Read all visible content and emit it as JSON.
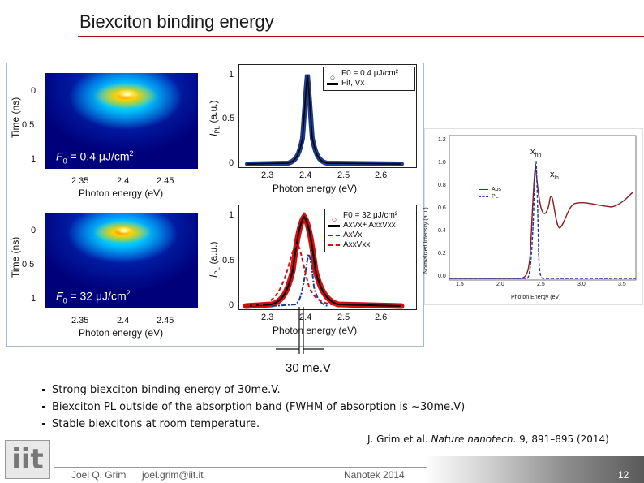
{
  "slide": {
    "title": "Biexciton binding energy"
  },
  "figure_left": {
    "top_heatmap": {
      "label_prefix": "F",
      "label_sub": "0",
      "label_text": " = 0.4 μJ/cm",
      "label_sup": "2"
    },
    "bottom_heatmap": {
      "label_prefix": "F",
      "label_sub": "0",
      "label_text": " = 32 μJ/cm",
      "label_sup": "2"
    },
    "time_axis_title": "Time (ns)",
    "time_ticks": [
      "0",
      "0.5",
      "1"
    ],
    "energy_axis_title": "Photon energy (eV)",
    "energy_ticks": [
      "2.35",
      "2.4",
      "2.45"
    ]
  },
  "figure_middle": {
    "y_axis_title": "I",
    "y_axis_sub": "PL",
    "y_axis_units": " (a.u.)",
    "y_ticks": [
      "1",
      "0.5",
      "0"
    ],
    "x_ticks": [
      "2.3",
      "2.4",
      "2.5",
      "2.6"
    ],
    "x_axis_title": "Photon energy (eV)",
    "top_legend": {
      "row1": "F0 = 0.4 μJ/cm²",
      "row2": "Fit, Vx"
    },
    "bottom_legend": {
      "row1": "F0 = 32 μJ/cm²",
      "row2": "AxVx+ AxxVxx",
      "row3": "AxVx",
      "row4": "AxxVxx"
    }
  },
  "inset": {
    "ylabel": "Normalized Intensity (a.u.)",
    "xlabel": "Photon Energy (eV)",
    "y_ticks": [
      "1.2",
      "1.0",
      "0.8",
      "0.6",
      "0.4",
      "0.2",
      "0.0"
    ],
    "x_ticks": [
      "1.5",
      "2.0",
      "2.5",
      "3.0",
      "3.5"
    ],
    "legend": [
      "Abs",
      "PL"
    ],
    "annotation_hh": "x",
    "annotation_hh_sub": "hh",
    "annotation_lh": "x",
    "annotation_lh_sub": "lh"
  },
  "annotation_30mev": "30 me.V",
  "bullets": [
    "Strong biexciton binding energy of 30me.V.",
    "Biexciton PL outside of the absorption band (FWHM of absorption is ~30me.V)",
    "Stable biexcitons at room temperature."
  ],
  "reference": {
    "authors": "J. Grim et al. ",
    "journal": "Nature nanotech",
    "rest": ". 9, 891–895 (2014)"
  },
  "footer": {
    "logo": "iit",
    "presenter": "Joel Q. Grim",
    "email": "joel.grim@iit.it",
    "event": "Nanotek 2014",
    "page": "12"
  },
  "colors": {
    "title_rule": "#b0001a",
    "frame": "#aab8cc",
    "data_blue": "#1a3a8a",
    "fit_black": "#000000",
    "red_data": "#d01010",
    "abs_line": "#8b1a1a",
    "pl_dash": "#1a3aa0"
  }
}
